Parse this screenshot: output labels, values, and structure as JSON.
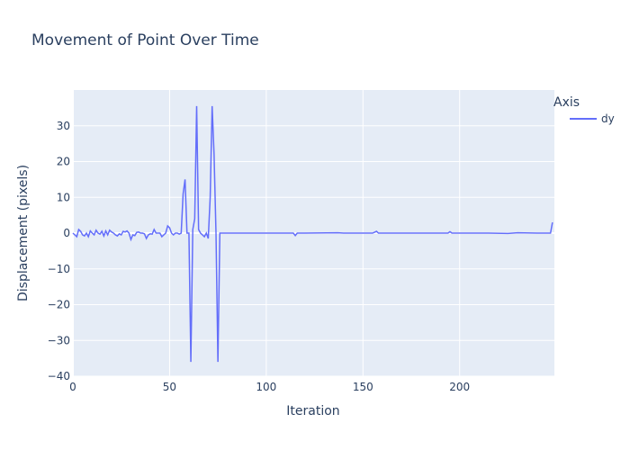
{
  "chart_data": {
    "type": "line",
    "title": "Movement of Point Over Time",
    "xlabel": "Iteration",
    "ylabel": "Displacement (pixels)",
    "xlim": [
      0,
      249
    ],
    "ylim": [
      -40,
      40
    ],
    "x_ticks": [
      0,
      50,
      100,
      150,
      200
    ],
    "y_ticks": [
      -40,
      -30,
      -20,
      -10,
      0,
      10,
      20,
      30
    ],
    "grid": true,
    "legend": {
      "title": "Axis",
      "placement": "top-right"
    },
    "colors": {
      "plot_bg": "#e5ecf6",
      "series": "#636efa"
    },
    "series": [
      {
        "name": "dy",
        "points": [
          [
            0,
            0
          ],
          [
            1,
            -0.5
          ],
          [
            2,
            -1
          ],
          [
            3,
            1
          ],
          [
            4,
            0.5
          ],
          [
            5,
            -0.5
          ],
          [
            6,
            -0.8
          ],
          [
            7,
            0
          ],
          [
            8,
            -1
          ],
          [
            9,
            0.6
          ],
          [
            10,
            0
          ],
          [
            11,
            -0.5
          ],
          [
            12,
            0.8
          ],
          [
            13,
            0
          ],
          [
            14,
            -0.3
          ],
          [
            15,
            0.5
          ],
          [
            16,
            -0.8
          ],
          [
            17,
            0.6
          ],
          [
            18,
            -0.5
          ],
          [
            19,
            0.8
          ],
          [
            20,
            0.3
          ],
          [
            21,
            0
          ],
          [
            22,
            -0.5
          ],
          [
            23,
            -0.8
          ],
          [
            24,
            -0.2
          ],
          [
            25,
            -0.5
          ],
          [
            26,
            0.5
          ],
          [
            27,
            0.3
          ],
          [
            28,
            0.6
          ],
          [
            29,
            0
          ],
          [
            30,
            -1.8
          ],
          [
            31,
            -0.5
          ],
          [
            32,
            -0.7
          ],
          [
            33,
            0.2
          ],
          [
            34,
            0.3
          ],
          [
            35,
            0
          ],
          [
            36,
            0
          ],
          [
            37,
            -0.2
          ],
          [
            38,
            -1.5
          ],
          [
            39,
            -0.5
          ],
          [
            40,
            -0.2
          ],
          [
            41,
            -0.3
          ],
          [
            42,
            1
          ],
          [
            43,
            0
          ],
          [
            44,
            0
          ],
          [
            45,
            0
          ],
          [
            46,
            -1
          ],
          [
            47,
            -0.5
          ],
          [
            48,
            0
          ],
          [
            49,
            2
          ],
          [
            50,
            1.5
          ],
          [
            51,
            0
          ],
          [
            52,
            -0.5
          ],
          [
            53,
            0
          ],
          [
            54,
            0
          ],
          [
            55,
            -0.3
          ],
          [
            56,
            0
          ],
          [
            57,
            11
          ],
          [
            58,
            15
          ],
          [
            59,
            0
          ],
          [
            60,
            0
          ],
          [
            61,
            -36
          ],
          [
            62,
            1
          ],
          [
            63,
            4
          ],
          [
            64,
            35.5
          ],
          [
            65,
            1
          ],
          [
            66,
            0
          ],
          [
            67,
            -0.5
          ],
          [
            68,
            -1
          ],
          [
            69,
            0
          ],
          [
            70,
            -1.5
          ],
          [
            71,
            10
          ],
          [
            72,
            35.5
          ],
          [
            73,
            22
          ],
          [
            74,
            0
          ],
          [
            75,
            -36
          ],
          [
            76,
            0
          ],
          [
            77,
            0
          ],
          [
            80,
            0
          ],
          [
            100,
            0
          ],
          [
            114,
            0
          ],
          [
            115,
            -0.7
          ],
          [
            116,
            0
          ],
          [
            120,
            0
          ],
          [
            137,
            0.1
          ],
          [
            140,
            0
          ],
          [
            155,
            0
          ],
          [
            157,
            0.5
          ],
          [
            158,
            0
          ],
          [
            175,
            0
          ],
          [
            194,
            0
          ],
          [
            195,
            0.4
          ],
          [
            196,
            0
          ],
          [
            215,
            0
          ],
          [
            225,
            -0.1
          ],
          [
            230,
            0.1
          ],
          [
            240,
            0
          ],
          [
            247,
            0
          ],
          [
            248,
            3
          ]
        ]
      }
    ]
  }
}
